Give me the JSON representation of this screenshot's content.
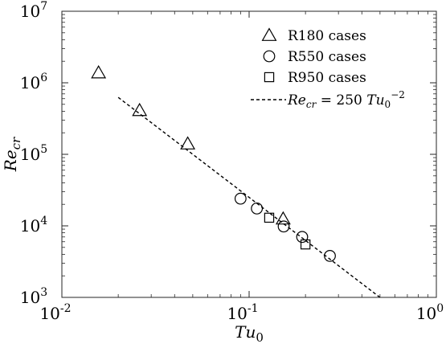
{
  "chart_data": {
    "type": "scatter",
    "title": "",
    "xscale": "log",
    "yscale": "log",
    "xlim": [
      0.01,
      1
    ],
    "ylim": [
      1000,
      10000000
    ],
    "grid": false,
    "legend_position": "top-right",
    "xlabel": {
      "base": "Tu",
      "sub": "0"
    },
    "ylabel": {
      "base": "Re",
      "sub": "cr"
    },
    "xticks": [
      {
        "value": 0.01,
        "base": "10",
        "exp": "-2"
      },
      {
        "value": 0.1,
        "base": "10",
        "exp": "-1"
      },
      {
        "value": 1,
        "base": "10",
        "exp": "0"
      }
    ],
    "yticks": [
      {
        "value": 1000,
        "base": "10",
        "exp": "3"
      },
      {
        "value": 10000,
        "base": "10",
        "exp": "4"
      },
      {
        "value": 100000,
        "base": "10",
        "exp": "5"
      },
      {
        "value": 1000000,
        "base": "10",
        "exp": "6"
      },
      {
        "value": 10000000,
        "base": "10",
        "exp": "7"
      }
    ],
    "series": [
      {
        "name": "R180 cases",
        "marker": "triangle",
        "points": [
          {
            "x": 0.0157,
            "y": 1380000
          },
          {
            "x": 0.026,
            "y": 410000
          },
          {
            "x": 0.047,
            "y": 140000
          },
          {
            "x": 0.152,
            "y": 12500
          }
        ]
      },
      {
        "name": "R550 cases",
        "marker": "circle",
        "points": [
          {
            "x": 0.09,
            "y": 24000
          },
          {
            "x": 0.11,
            "y": 17500
          },
          {
            "x": 0.153,
            "y": 9800
          },
          {
            "x": 0.192,
            "y": 7000
          },
          {
            "x": 0.27,
            "y": 3800
          }
        ]
      },
      {
        "name": "R950 cases",
        "marker": "square",
        "points": [
          {
            "x": 0.128,
            "y": 13000
          },
          {
            "x": 0.2,
            "y": 5500
          }
        ]
      }
    ],
    "fit_line": {
      "style": "dashed",
      "coefficient": 250,
      "exponent": -2,
      "x_range": [
        0.02,
        0.5
      ],
      "label": {
        "lhs_base": "Re",
        "lhs_sub": "cr",
        "equals": " = 250 ",
        "rhs_base": "Tu",
        "rhs_sub": "0",
        "rhs_exp": "−2"
      }
    }
  }
}
